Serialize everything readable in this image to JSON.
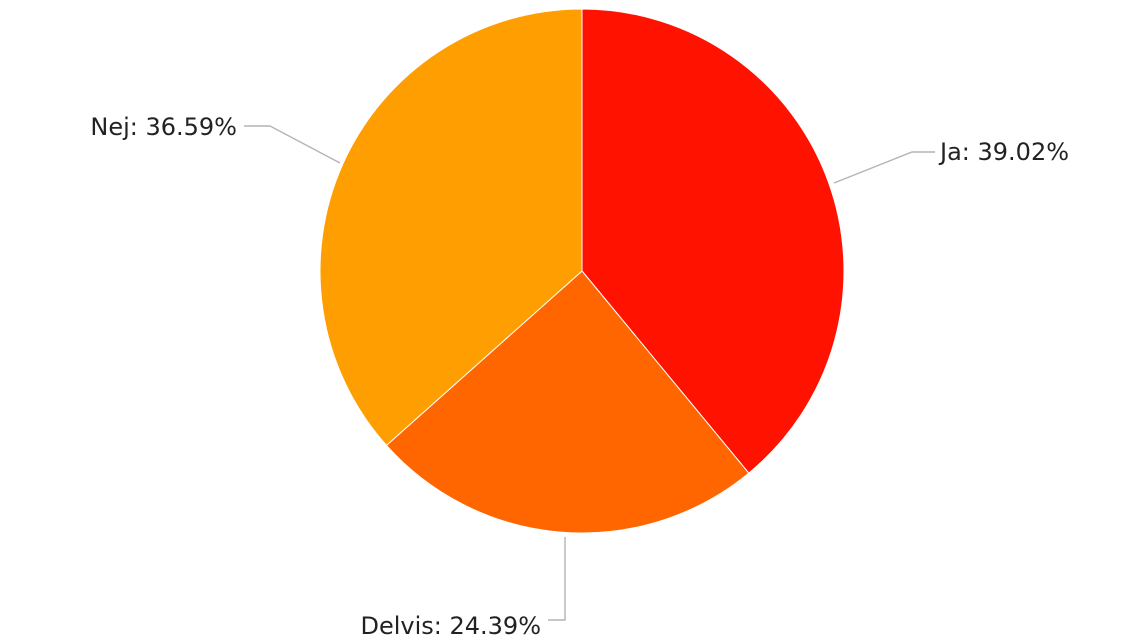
{
  "chart_data": {
    "type": "pie",
    "start_angle_deg": 0,
    "direction": "clockwise",
    "slices": [
      {
        "label": "Ja",
        "value": 39.02,
        "display": "Ja: 39.02%",
        "color": "#ff1200"
      },
      {
        "label": "Delvis",
        "value": 24.39,
        "display": "Delvis: 24.39%",
        "color": "#ff6600"
      },
      {
        "label": "Nej",
        "value": 36.59,
        "display": "Nej: 36.59%",
        "color": "#ff9e00"
      }
    ]
  }
}
